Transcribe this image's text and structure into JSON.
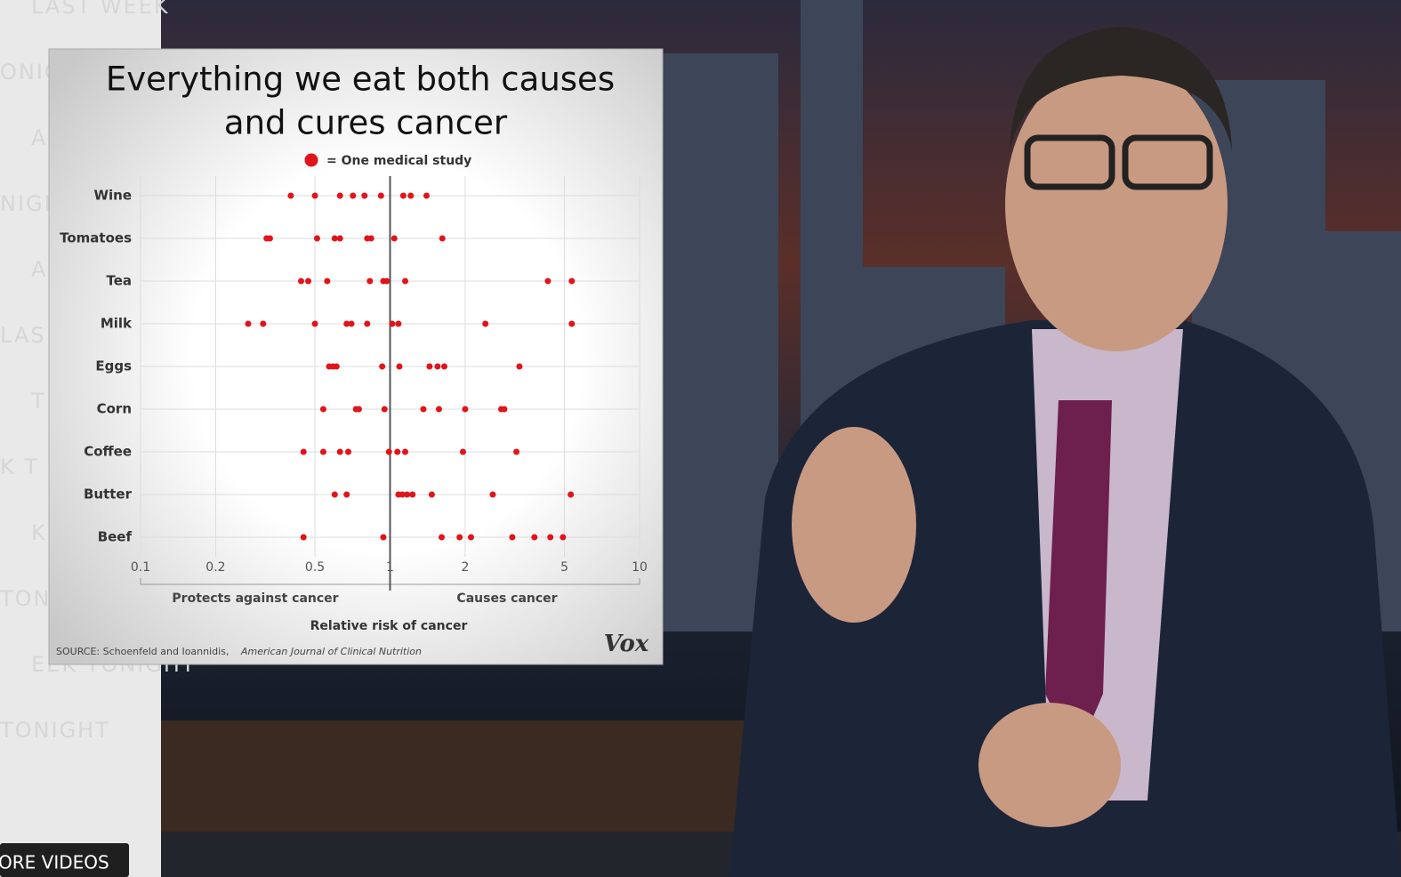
{
  "chart_data": {
    "type": "dot-strip",
    "title_lines": [
      "Everything we eat both causes",
      "and cures cancer"
    ],
    "legend": "= One medical study",
    "color": "#e0141a",
    "xlim": [
      0.1,
      10
    ],
    "xticks": [
      0.1,
      0.2,
      0.5,
      1,
      2,
      5,
      10
    ],
    "xscale": "log",
    "grid": true,
    "reference_x": 1,
    "rows": [
      {
        "label": "Wine",
        "values": [
          0.4,
          0.5,
          0.63,
          0.71,
          0.79,
          0.92,
          1.13,
          1.21,
          1.4
        ]
      },
      {
        "label": "Tomatoes",
        "values": [
          0.32,
          0.33,
          0.51,
          0.6,
          0.63,
          0.81,
          0.84,
          1.04,
          1.62
        ]
      },
      {
        "label": "Tea",
        "values": [
          0.44,
          0.47,
          0.56,
          0.83,
          0.94,
          0.97,
          1.15,
          4.29,
          5.35
        ]
      },
      {
        "label": "Milk",
        "values": [
          0.27,
          0.31,
          0.5,
          0.67,
          0.7,
          0.81,
          1.02,
          1.08,
          2.41,
          5.35
        ]
      },
      {
        "label": "Eggs",
        "values": [
          0.57,
          0.59,
          0.61,
          0.93,
          1.09,
          1.44,
          1.55,
          1.65,
          3.3
        ]
      },
      {
        "label": "Corn",
        "values": [
          0.54,
          0.73,
          0.75,
          0.95,
          1.36,
          1.57,
          2.0,
          2.79,
          2.87
        ]
      },
      {
        "label": "Coffee",
        "values": [
          0.45,
          0.54,
          0.63,
          0.68,
          0.99,
          1.07,
          1.15,
          1.96,
          3.21
        ]
      },
      {
        "label": "Butter",
        "values": [
          0.6,
          0.67,
          1.08,
          1.12,
          1.17,
          1.23,
          1.47,
          2.58,
          5.3
        ]
      },
      {
        "label": "Beef",
        "values": [
          0.45,
          0.94,
          1.61,
          1.9,
          2.11,
          3.09,
          3.79,
          4.39,
          4.93
        ]
      }
    ],
    "x_left_note": "Protects against cancer",
    "x_right_note": "Causes cancer",
    "xlabel": "Relative risk of cancer",
    "source": "SOURCE: Schoenfeld and Ioannidis,",
    "source_journal": "American Journal of Clinical Nutrition",
    "logo": "Vox"
  },
  "player": {
    "more_videos": "ORE VIDEOS",
    "watermarks": [
      "LAST WEEK",
      "ONIGHT",
      "AST",
      "NIGHT",
      "AST",
      "LAS",
      "T TO",
      "K T",
      "K TO",
      "TONIGHT",
      "EEK TONIGHT",
      "TONIGHT"
    ]
  }
}
